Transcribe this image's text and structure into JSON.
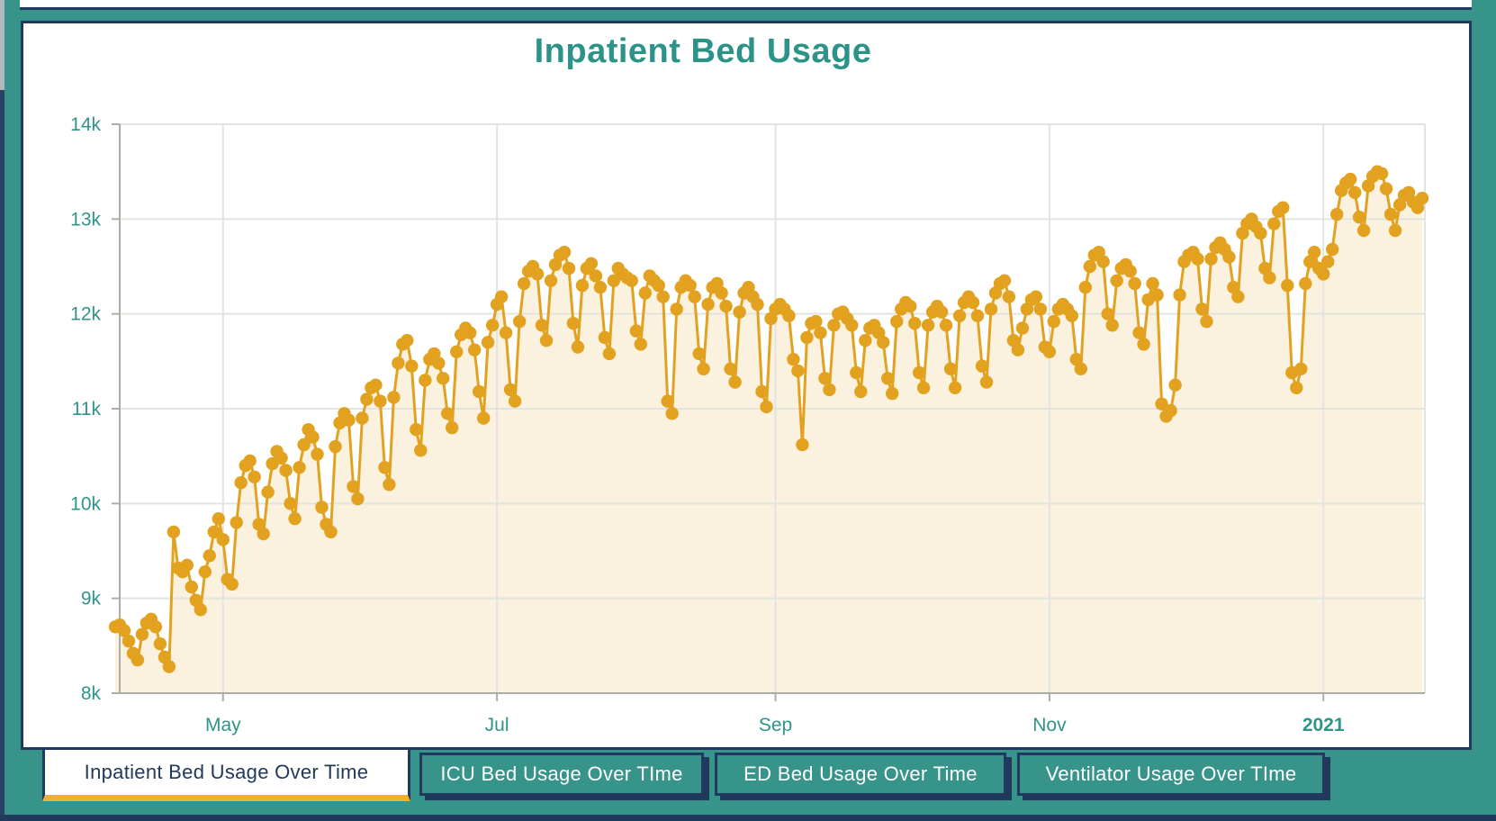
{
  "title": "Inpatient Bed Usage",
  "tabs": [
    {
      "label": "Inpatient Bed Usage Over Time",
      "active": true
    },
    {
      "label": "ICU Bed Usage Over TIme",
      "active": false
    },
    {
      "label": "ED Bed Usage Over Time",
      "active": false
    },
    {
      "label": "Ventilator Usage Over TIme",
      "active": false
    }
  ],
  "colors": {
    "page_teal": "#36948B",
    "navy": "#21395C",
    "title_teal": "#2B9387",
    "axis_label_teal": "#2F948A",
    "series_orange": "#E2A21F",
    "area_cream": "#FAF1DF",
    "gridline_gray": "#E3E3DF",
    "axis_gray": "#ADADA8",
    "active_tab_gold": "#F1B228"
  },
  "chart_data": {
    "type": "line",
    "title": "Inpatient Bed Usage",
    "xlabel": "",
    "ylabel": "",
    "ylim": [
      8,
      14
    ],
    "grid": true,
    "legend": false,
    "unit": "thousands of beds",
    "y_ticks": [
      {
        "label": "8k",
        "value": 8
      },
      {
        "label": "9k",
        "value": 9
      },
      {
        "label": "10k",
        "value": 10
      },
      {
        "label": "11k",
        "value": 11
      },
      {
        "label": "12k",
        "value": 12
      },
      {
        "label": "13k",
        "value": 13
      },
      {
        "label": "14k",
        "value": 14
      }
    ],
    "x_ticks": [
      {
        "label": "May",
        "index": 24,
        "bold": false
      },
      {
        "label": "Jul",
        "index": 85,
        "bold": false
      },
      {
        "label": "Sep",
        "index": 147,
        "bold": false
      },
      {
        "label": "Nov",
        "index": 208,
        "bold": false
      },
      {
        "label": "2021",
        "index": 269,
        "bold": true
      }
    ],
    "values": [
      8.7,
      8.72,
      8.66,
      8.55,
      8.42,
      8.35,
      8.62,
      8.74,
      8.78,
      8.7,
      8.52,
      8.38,
      8.28,
      9.7,
      9.32,
      9.28,
      9.35,
      9.12,
      8.98,
      8.88,
      9.28,
      9.45,
      9.7,
      9.84,
      9.62,
      9.2,
      9.15,
      9.8,
      10.22,
      10.4,
      10.45,
      10.28,
      9.78,
      9.68,
      10.12,
      10.42,
      10.55,
      10.48,
      10.35,
      10.0,
      9.84,
      10.38,
      10.62,
      10.78,
      10.7,
      10.52,
      9.96,
      9.78,
      9.7,
      10.6,
      10.85,
      10.95,
      10.88,
      10.18,
      10.05,
      10.9,
      11.1,
      11.22,
      11.25,
      11.08,
      10.38,
      10.2,
      11.12,
      11.48,
      11.68,
      11.72,
      11.45,
      10.78,
      10.56,
      11.3,
      11.52,
      11.58,
      11.48,
      11.32,
      10.95,
      10.8,
      11.6,
      11.78,
      11.85,
      11.8,
      11.62,
      11.18,
      10.9,
      11.7,
      11.88,
      12.1,
      12.18,
      11.8,
      11.2,
      11.08,
      11.92,
      12.32,
      12.45,
      12.5,
      12.42,
      11.88,
      11.72,
      12.35,
      12.52,
      12.62,
      12.65,
      12.48,
      11.9,
      11.65,
      12.3,
      12.48,
      12.53,
      12.4,
      12.28,
      11.75,
      11.58,
      12.35,
      12.48,
      12.42,
      12.38,
      12.35,
      11.82,
      11.68,
      12.22,
      12.4,
      12.35,
      12.3,
      12.18,
      11.08,
      10.95,
      12.05,
      12.28,
      12.35,
      12.3,
      12.18,
      11.58,
      11.42,
      12.1,
      12.28,
      12.32,
      12.22,
      12.08,
      11.42,
      11.28,
      12.02,
      12.22,
      12.28,
      12.18,
      12.1,
      11.18,
      11.02,
      11.95,
      12.05,
      12.1,
      12.05,
      11.98,
      11.52,
      11.4,
      10.62,
      11.75,
      11.9,
      11.92,
      11.8,
      11.32,
      11.2,
      11.88,
      12.0,
      12.02,
      11.95,
      11.88,
      11.38,
      11.18,
      11.72,
      11.85,
      11.88,
      11.8,
      11.7,
      11.32,
      11.16,
      11.92,
      12.05,
      12.12,
      12.08,
      11.9,
      11.38,
      11.22,
      11.88,
      12.02,
      12.08,
      12.02,
      11.88,
      11.42,
      11.22,
      11.98,
      12.12,
      12.18,
      12.12,
      11.98,
      11.45,
      11.28,
      12.05,
      12.22,
      12.32,
      12.35,
      12.18,
      11.72,
      11.62,
      11.85,
      12.05,
      12.15,
      12.18,
      12.05,
      11.65,
      11.6,
      11.92,
      12.05,
      12.1,
      12.05,
      11.98,
      11.52,
      11.42,
      12.28,
      12.5,
      12.62,
      12.65,
      12.55,
      12.0,
      11.88,
      12.35,
      12.48,
      12.52,
      12.45,
      12.32,
      11.8,
      11.68,
      12.15,
      12.32,
      12.2,
      11.05,
      10.92,
      10.98,
      11.25,
      12.2,
      12.55,
      12.62,
      12.65,
      12.58,
      12.05,
      11.92,
      12.58,
      12.7,
      12.75,
      12.68,
      12.6,
      12.28,
      12.18,
      12.85,
      12.95,
      13.0,
      12.92,
      12.85,
      12.48,
      12.38,
      12.95,
      13.08,
      13.12,
      12.3,
      11.38,
      11.22,
      11.42,
      12.32,
      12.55,
      12.65,
      12.48,
      12.42,
      12.55,
      12.68,
      13.05,
      13.3,
      13.38,
      13.42,
      13.28,
      13.02,
      12.88,
      13.35,
      13.45,
      13.5,
      13.48,
      13.32,
      13.05,
      12.88,
      13.15,
      13.25,
      13.28,
      13.18,
      13.12,
      13.22
    ]
  }
}
